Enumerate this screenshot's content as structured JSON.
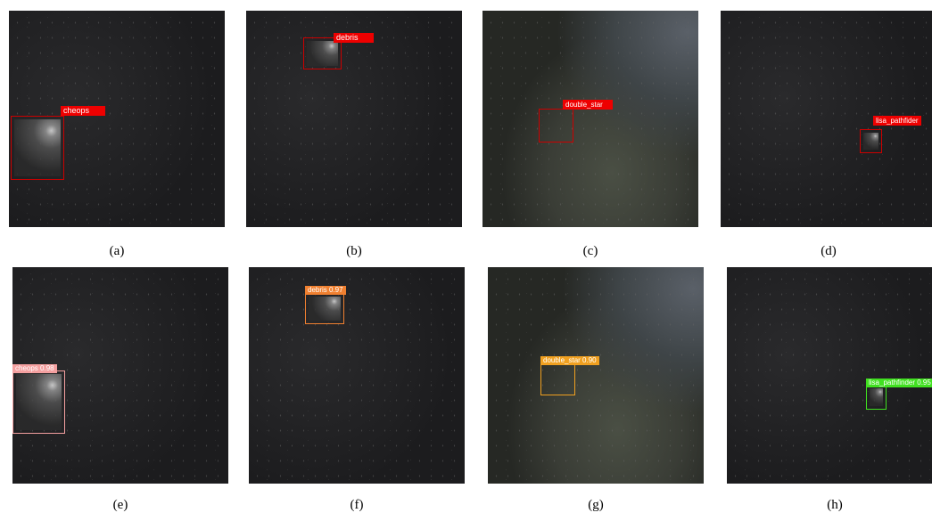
{
  "panels": [
    {
      "label": "cheops",
      "caption": "(a)"
    },
    {
      "label": "debris",
      "caption": "(b)"
    },
    {
      "label": "double_star",
      "caption": "(c)"
    },
    {
      "label": "lisa_pathfider",
      "caption": "(d)"
    },
    {
      "label": "cheops 0.98",
      "caption": "(e)"
    },
    {
      "label": "debris 0.97",
      "caption": "(f)"
    },
    {
      "label": "double_star 0.90",
      "caption": "(g)"
    },
    {
      "label": "lisa_pathfinder 0.95",
      "caption": "(h)"
    }
  ]
}
